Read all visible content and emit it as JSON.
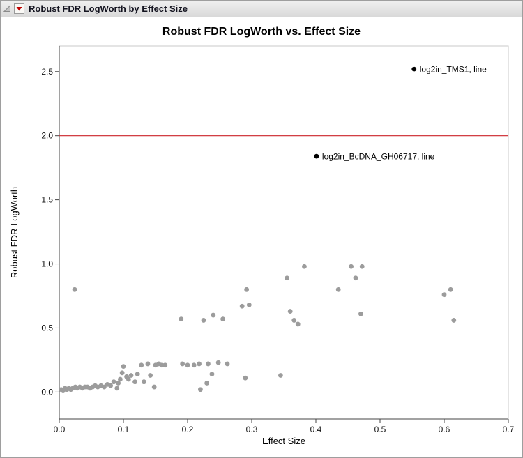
{
  "header": {
    "title": "Robust FDR LogWorth by Effect Size"
  },
  "colors": {
    "point_gray": "#9c9c9c",
    "labeled_point": "#000000",
    "reference_line_red": "#cc2229",
    "header_background": "#e4e4e4"
  },
  "chart_data": {
    "type": "scatter",
    "title": "Robust FDR LogWorth vs. Effect Size",
    "xlabel": "Effect Size",
    "ylabel": "Robust FDR LogWorth",
    "xlim": [
      0.0,
      0.7
    ],
    "ylim": [
      -0.21,
      2.7
    ],
    "grid": false,
    "legend": "none",
    "x_ticks": [
      {
        "v": 0.0,
        "label": "0.0"
      },
      {
        "v": 0.1,
        "label": "0.1"
      },
      {
        "v": 0.2,
        "label": "0.2"
      },
      {
        "v": 0.3,
        "label": "0.3"
      },
      {
        "v": 0.4,
        "label": "0.4"
      },
      {
        "v": 0.5,
        "label": "0.5"
      },
      {
        "v": 0.6,
        "label": "0.6"
      },
      {
        "v": 0.7,
        "label": "0.7"
      }
    ],
    "y_ticks": [
      {
        "v": 0.0,
        "label": "0.0"
      },
      {
        "v": 0.5,
        "label": "0.5"
      },
      {
        "v": 1.0,
        "label": "1.0"
      },
      {
        "v": 1.5,
        "label": "1.5"
      },
      {
        "v": 2.0,
        "label": "2.0"
      },
      {
        "v": 2.5,
        "label": "2.5"
      }
    ],
    "reference_lines": [
      {
        "axis": "y",
        "value": 2.0,
        "color": "#cc2229"
      }
    ],
    "series": [
      {
        "name": "unlabeled_points",
        "color": "#9c9c9c",
        "points": [
          [
            0.003,
            0.02
          ],
          [
            0.006,
            0.01
          ],
          [
            0.009,
            0.03
          ],
          [
            0.012,
            0.02
          ],
          [
            0.015,
            0.03
          ],
          [
            0.018,
            0.02
          ],
          [
            0.021,
            0.03
          ],
          [
            0.024,
            0.8
          ],
          [
            0.025,
            0.04
          ],
          [
            0.028,
            0.03
          ],
          [
            0.032,
            0.04
          ],
          [
            0.036,
            0.03
          ],
          [
            0.04,
            0.04
          ],
          [
            0.044,
            0.04
          ],
          [
            0.048,
            0.03
          ],
          [
            0.052,
            0.04
          ],
          [
            0.056,
            0.05
          ],
          [
            0.06,
            0.04
          ],
          [
            0.065,
            0.05
          ],
          [
            0.07,
            0.04
          ],
          [
            0.075,
            0.06
          ],
          [
            0.08,
            0.05
          ],
          [
            0.085,
            0.08
          ],
          [
            0.09,
            0.03
          ],
          [
            0.092,
            0.07
          ],
          [
            0.095,
            0.1
          ],
          [
            0.098,
            0.15
          ],
          [
            0.1,
            0.2
          ],
          [
            0.105,
            0.12
          ],
          [
            0.108,
            0.1
          ],
          [
            0.112,
            0.13
          ],
          [
            0.118,
            0.08
          ],
          [
            0.122,
            0.14
          ],
          [
            0.128,
            0.21
          ],
          [
            0.132,
            0.08
          ],
          [
            0.138,
            0.22
          ],
          [
            0.142,
            0.13
          ],
          [
            0.148,
            0.04
          ],
          [
            0.15,
            0.21
          ],
          [
            0.155,
            0.22
          ],
          [
            0.16,
            0.21
          ],
          [
            0.165,
            0.21
          ],
          [
            0.19,
            0.57
          ],
          [
            0.192,
            0.22
          ],
          [
            0.2,
            0.21
          ],
          [
            0.21,
            0.21
          ],
          [
            0.218,
            0.22
          ],
          [
            0.22,
            0.02
          ],
          [
            0.225,
            0.56
          ],
          [
            0.23,
            0.07
          ],
          [
            0.232,
            0.22
          ],
          [
            0.238,
            0.14
          ],
          [
            0.24,
            0.6
          ],
          [
            0.248,
            0.23
          ],
          [
            0.255,
            0.57
          ],
          [
            0.262,
            0.22
          ],
          [
            0.285,
            0.67
          ],
          [
            0.29,
            0.11
          ],
          [
            0.292,
            0.8
          ],
          [
            0.296,
            0.68
          ],
          [
            0.345,
            0.13
          ],
          [
            0.355,
            0.89
          ],
          [
            0.36,
            0.63
          ],
          [
            0.366,
            0.56
          ],
          [
            0.372,
            0.53
          ],
          [
            0.382,
            0.98
          ],
          [
            0.435,
            0.8
          ],
          [
            0.455,
            0.98
          ],
          [
            0.462,
            0.89
          ],
          [
            0.47,
            0.61
          ],
          [
            0.472,
            0.98
          ],
          [
            0.6,
            0.76
          ],
          [
            0.61,
            0.8
          ],
          [
            0.615,
            0.56
          ]
        ]
      },
      {
        "name": "labeled_points",
        "color": "#000000",
        "points": [
          {
            "x": 0.553,
            "y": 2.52,
            "label": "log2in_TMS1, line"
          },
          {
            "x": 0.401,
            "y": 1.84,
            "label": "log2in_BcDNA_GH06717, line"
          }
        ]
      }
    ]
  }
}
